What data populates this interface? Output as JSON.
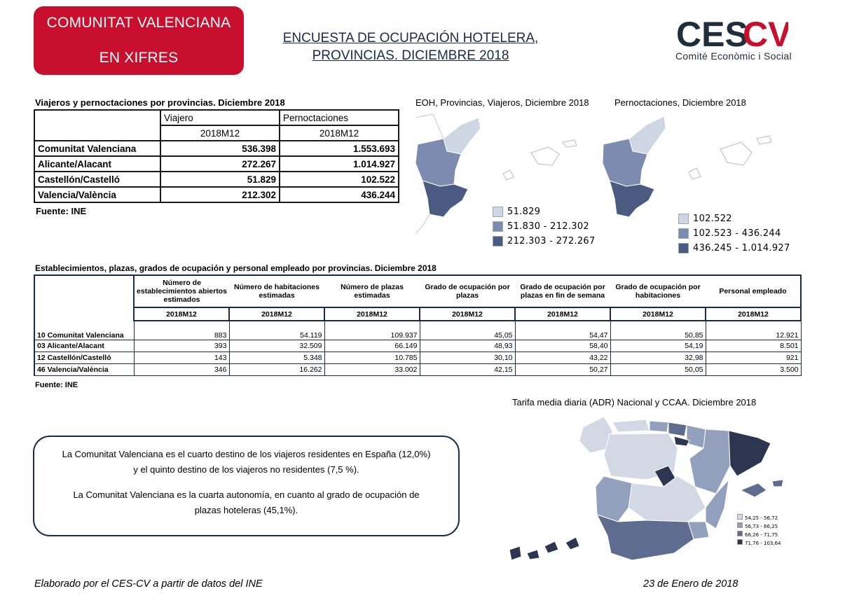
{
  "header": {
    "badge_line1": "COMUNITAT VALENCIANA",
    "badge_line2": "EN XIFRES",
    "title_line1": "ENCUESTA DE OCUPACIÓN HOTELERA,",
    "title_line2": "PROVINCIAS. DICIEMBRE 2018",
    "logo_text": "CESCV",
    "logo_subtitle": "Comité Econòmic i Social",
    "brand_colors": {
      "red": "#c8102e",
      "navy": "#1f2d3d"
    }
  },
  "table1": {
    "title": "Viajeros y pernoctaciones por provincias. Diciembre 2018",
    "col1": "Viajero",
    "col2": "Pernoctaciones",
    "period": "2018M12",
    "rows": [
      {
        "label": "Comunitat Valenciana",
        "viajeros": "536.398",
        "pernoct": "1.553.693"
      },
      {
        "label": "Alicante/Alacant",
        "viajeros": "272.267",
        "pernoct": "1.014.927"
      },
      {
        "label": "Castellón/Castelló",
        "viajeros": "51.829",
        "pernoct": "102.522"
      },
      {
        "label": "Valencia/València",
        "viajeros": "212.302",
        "pernoct": "436.244"
      }
    ],
    "source": "Fuente: INE"
  },
  "map_viajeros": {
    "title": "EOH, Provincias, Viajeros, Diciembre 2018",
    "legend": [
      {
        "label": "51.829",
        "color": "#cfd6e3"
      },
      {
        "label": "51.830 - 212.302",
        "color": "#7d8bb0"
      },
      {
        "label": "212.303 - 272.267",
        "color": "#4a5a80"
      }
    ]
  },
  "map_pernoctaciones": {
    "title": "Pernoctaciones, Diciembre 2018",
    "legend": [
      {
        "label": "102.522",
        "color": "#cfd6e3"
      },
      {
        "label": "102.523 - 436.244",
        "color": "#7d8bb0"
      },
      {
        "label": "436.245 - 1.014.927",
        "color": "#4a5a80"
      }
    ]
  },
  "table2": {
    "title": "Establecimientos, plazas, grados de ocupación y personal empleado por provincias. Diciembre 2018",
    "headers": [
      "Número de establecimientos abiertos estimados",
      "Número de habitaciones estimadas",
      "Número de plazas estimadas",
      "Grado de ocupación por plazas",
      "Grado de ocupación por plazas en fin de semana",
      "Grado de ocupación por habitaciones",
      "Personal empleado"
    ],
    "period": "2018M12",
    "rows": [
      {
        "label": "10 Comunitat Valenciana",
        "values": [
          "883",
          "54.119",
          "109.937",
          "45,05",
          "54,47",
          "50,85",
          "12.921"
        ]
      },
      {
        "label": "03 Alicante/Alacant",
        "values": [
          "393",
          "32.509",
          "66.149",
          "48,93",
          "58,40",
          "54,19",
          "8.501"
        ]
      },
      {
        "label": "12 Castellón/Castelló",
        "values": [
          "143",
          "5.348",
          "10.785",
          "30,10",
          "43,22",
          "32,98",
          "921"
        ]
      },
      {
        "label": "46 Valencia/València",
        "values": [
          "346",
          "16.262",
          "33.002",
          "42,15",
          "50,27",
          "50,05",
          "3.500"
        ]
      }
    ],
    "source": "Fuente: INE"
  },
  "spain_map": {
    "title": "Tarifa media diaria (ADR) Nacional y CCAA. Diciembre 2018",
    "legend": [
      {
        "label": "54,25 - 56,72",
        "color": "#d3d9e4"
      },
      {
        "label": "56,73 - 66,25",
        "color": "#93a0bd"
      },
      {
        "label": "66,26 - 71,75",
        "color": "#5d6c8f"
      },
      {
        "label": "71,76 - 103,64",
        "color": "#2c3650"
      }
    ]
  },
  "note": {
    "p1_line1": "La Comunitat Valenciana es el cuarto destino de los viajeros residentes en España (12,0%)",
    "p1_line2": "y el quinto destino de los viajeros no residentes (7,5 %).",
    "p2_line1": "La Comunitat Valenciana es la cuarta autonomía, en cuanto al grado de ocupación de",
    "p2_line2": "plazas hoteleras (45,1%)."
  },
  "footer": {
    "left": "Elaborado por el CES-CV a partir de datos del INE",
    "right": "23 de Enero de 2018"
  }
}
